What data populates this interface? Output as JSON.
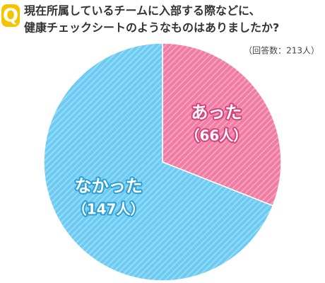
{
  "icon_label": "Q",
  "chart_data": {
    "type": "pie",
    "title": [
      "現在所属しているチームに入部する際などに、",
      "健康チェックシートのようなものはありましたか?"
    ],
    "subtitle": "（回答数：213人）",
    "categories": [
      "あった",
      "なかった"
    ],
    "values": [
      66,
      147
    ],
    "value_labels": [
      "（66人）",
      "（147人）"
    ],
    "colors": [
      "#f07ca4",
      "#6ccbf3"
    ]
  }
}
